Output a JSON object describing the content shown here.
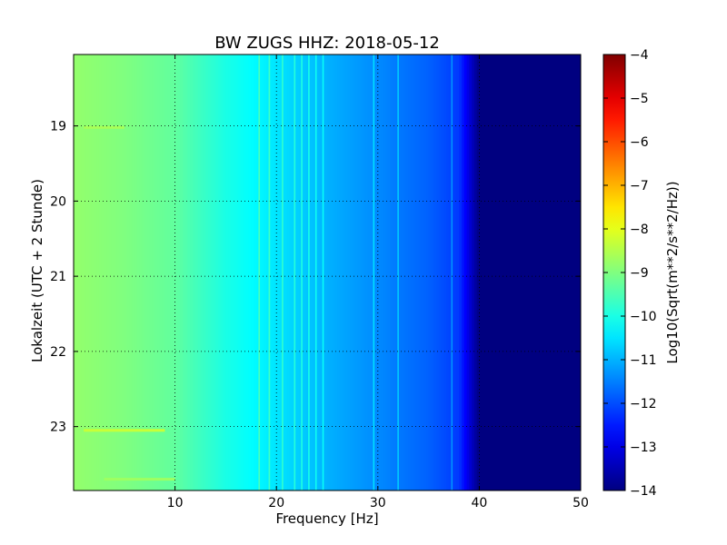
{
  "chart_data": {
    "type": "heatmap",
    "title": "BW ZUGS HHZ: 2018-05-12",
    "xlabel": "Frequency [Hz]",
    "ylabel": "Lokalzeit (UTC + 2 Stunde)",
    "xlim": [
      0,
      50
    ],
    "ylim": [
      18.05,
      23.85
    ],
    "xticks": [
      10,
      20,
      30,
      40,
      50
    ],
    "xtick_labels": [
      "10",
      "20",
      "30",
      "40",
      "50"
    ],
    "yticks": [
      19,
      20,
      21,
      22,
      23
    ],
    "ytick_labels": [
      "19",
      "20",
      "21",
      "22",
      "23"
    ],
    "y_inverted": true,
    "grid": true,
    "colorbar": {
      "label": "Log10(Sqrt(m**2/s**2/Hz))",
      "min": -14,
      "max": -4,
      "ticks": [
        -4,
        -5,
        -6,
        -7,
        -8,
        -9,
        -10,
        -11,
        -12,
        -13,
        -14
      ],
      "tick_labels": [
        "−4",
        "−5",
        "−6",
        "−7",
        "−8",
        "−9",
        "−10",
        "−11",
        "−12",
        "−13",
        "−14"
      ],
      "colormap": "jet"
    },
    "spectral_profile": {
      "frequency_hz": [
        0,
        5,
        10,
        15,
        20,
        25,
        30,
        35,
        38,
        40,
        50
      ],
      "level": [
        -8.8,
        -9.0,
        -9.3,
        -10.0,
        -10.5,
        -11.0,
        -11.4,
        -11.8,
        -12.2,
        -14.0,
        -14.0
      ]
    },
    "persistent_lines_hz": [
      18.3,
      19.3,
      20.6,
      21.8,
      22.5,
      23.2,
      23.9,
      24.6,
      29.6,
      32.0,
      37.3
    ],
    "transient_events": [
      {
        "time": 23.05,
        "freq_from": 1,
        "freq_to": 9,
        "level": -8.3
      },
      {
        "time": 19.02,
        "freq_from": 1,
        "freq_to": 5,
        "level": -8.6
      },
      {
        "time": 23.7,
        "freq_from": 3,
        "freq_to": 10,
        "level": -8.7
      }
    ]
  }
}
